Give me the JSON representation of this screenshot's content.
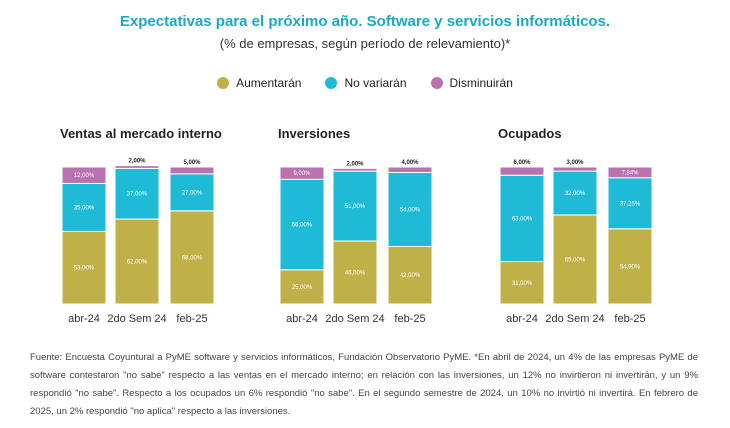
{
  "header": {
    "title": "Expectativas para el próximo año. Software y servicios informáticos.",
    "subtitle": "(% de empresas, según período de relevamiento)*"
  },
  "legend": [
    {
      "label": "Aumentarán",
      "color": "#bfb148"
    },
    {
      "label": "No variarán",
      "color": "#1ebad6"
    },
    {
      "label": "Disminuirán",
      "color": "#b971b0"
    }
  ],
  "chart_data": [
    {
      "type": "bar",
      "stacked": true,
      "title": "Ventas al mercado interno",
      "categories": [
        "abr-24",
        "2do Sem 24",
        "feb-25"
      ],
      "series": [
        {
          "name": "Aumentarán",
          "values": [
            53,
            62,
            68
          ],
          "labels": [
            "53,00%",
            "62,00%",
            "68,00%"
          ],
          "color": "#bfb148"
        },
        {
          "name": "No variarán",
          "values": [
            35,
            37,
            27
          ],
          "labels": [
            "35,00%",
            "37,00%",
            "27,00%"
          ],
          "color": "#1ebad6"
        },
        {
          "name": "Disminuirán",
          "values": [
            12,
            2,
            5
          ],
          "labels": [
            "12,00%",
            "2,00%",
            "5,00%"
          ],
          "color": "#b971b0"
        }
      ],
      "ylim": [
        0,
        100
      ]
    },
    {
      "type": "bar",
      "stacked": true,
      "title": "Inversiones",
      "categories": [
        "abr-24",
        "2do Sem 24",
        "feb-25"
      ],
      "series": [
        {
          "name": "Aumentarán",
          "values": [
            25,
            46,
            42
          ],
          "labels": [
            "25,00%",
            "46,00%",
            "42,00%"
          ],
          "color": "#bfb148"
        },
        {
          "name": "No variarán",
          "values": [
            66,
            51,
            54
          ],
          "labels": [
            "66,00%",
            "51,00%",
            "54,00%"
          ],
          "color": "#1ebad6"
        },
        {
          "name": "Disminuirán",
          "values": [
            9,
            2,
            4
          ],
          "labels": [
            "9,00%",
            "2,00%",
            "4,00%"
          ],
          "color": "#b971b0"
        }
      ],
      "ylim": [
        0,
        100
      ]
    },
    {
      "type": "bar",
      "stacked": true,
      "title": "Ocupados",
      "categories": [
        "abr-24",
        "2do Sem 24",
        "feb-25"
      ],
      "series": [
        {
          "name": "Aumentarán",
          "values": [
            31,
            65,
            54.9
          ],
          "labels": [
            "31,00%",
            "65,00%",
            "54,90%"
          ],
          "color": "#bfb148"
        },
        {
          "name": "No variarán",
          "values": [
            63,
            32,
            37.25
          ],
          "labels": [
            "63,00%",
            "32,00%",
            "37,25%"
          ],
          "color": "#1ebad6"
        },
        {
          "name": "Disminuirán",
          "values": [
            6,
            3,
            7.84
          ],
          "labels": [
            "6,00%",
            "3,00%",
            "7,84%"
          ],
          "color": "#b971b0"
        }
      ],
      "ylim": [
        0,
        100
      ]
    }
  ],
  "footnote": "Fuente: Encuesta Coyuntural a PyME software y servicios informáticos, Fundación Observatorio PyME. *En abril de 2024, un 4% de las empresas PyME de software contestaron \"no sabe\" respecto a las ventas en el mercado interno; en relación con las inversiones, un 12% no invirtieron ni invertirán, y un 9% respondió \"no sabe\". Respecto a los ocupados un 6% respondió \"no sabe\". En el segundo semestre de 2024, un 10% no invirtió ni invertirá. En febrero de 2025, un 2% respondió \"no aplica\" respecto a las inversiones."
}
